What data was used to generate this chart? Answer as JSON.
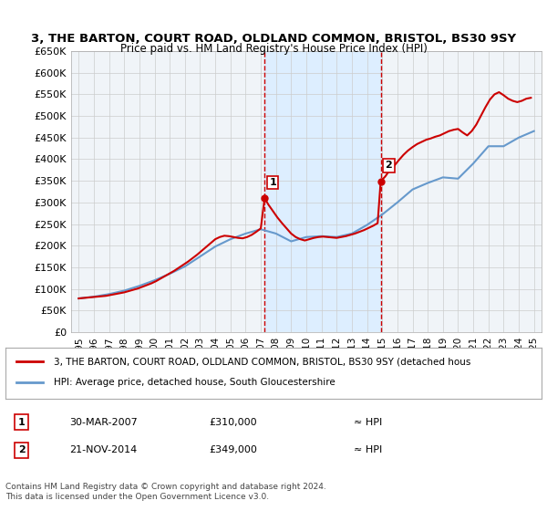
{
  "title": "3, THE BARTON, COURT ROAD, OLDLAND COMMON, BRISTOL, BS30 9SY",
  "subtitle": "Price paid vs. HM Land Registry's House Price Index (HPI)",
  "legend_line1": "3, THE BARTON, COURT ROAD, OLDLAND COMMON, BRISTOL, BS30 9SY (detached hous",
  "legend_line2": "HPI: Average price, detached house, South Gloucestershire",
  "footer": "Contains HM Land Registry data © Crown copyright and database right 2024.\nThis data is licensed under the Open Government Licence v3.0.",
  "sale1_label": "1",
  "sale1_date": "30-MAR-2007",
  "sale1_price": "£310,000",
  "sale1_note": "≈ HPI",
  "sale2_label": "2",
  "sale2_date": "21-NOV-2014",
  "sale2_price": "£349,000",
  "sale2_note": "≈ HPI",
  "sale1_year": 2007.25,
  "sale2_year": 2014.9,
  "sale1_value": 310000,
  "sale2_value": 349000,
  "ylim": [
    0,
    650000
  ],
  "xlim": [
    1994.5,
    2025.5
  ],
  "yticks": [
    0,
    50000,
    100000,
    150000,
    200000,
    250000,
    300000,
    350000,
    400000,
    450000,
    500000,
    550000,
    600000,
    650000
  ],
  "ytick_labels": [
    "£0",
    "£50K",
    "£100K",
    "£150K",
    "£200K",
    "£250K",
    "£300K",
    "£350K",
    "£400K",
    "£450K",
    "£500K",
    "£550K",
    "£600K",
    "£650K"
  ],
  "xticks": [
    1995,
    1996,
    1997,
    1998,
    1999,
    2000,
    2001,
    2002,
    2003,
    2004,
    2005,
    2006,
    2007,
    2008,
    2009,
    2010,
    2011,
    2012,
    2013,
    2014,
    2015,
    2016,
    2017,
    2018,
    2019,
    2020,
    2021,
    2022,
    2023,
    2024,
    2025
  ],
  "hpi_years": [
    1995,
    1996,
    1997,
    1998,
    1999,
    2000,
    2001,
    2002,
    2003,
    2004,
    2005,
    2006,
    2007,
    2008,
    2009,
    2010,
    2011,
    2012,
    2013,
    2014,
    2015,
    2016,
    2017,
    2018,
    2019,
    2020,
    2021,
    2022,
    2023,
    2024,
    2025
  ],
  "hpi_values": [
    78000,
    82000,
    88000,
    96000,
    107000,
    120000,
    135000,
    152000,
    175000,
    198000,
    215000,
    228000,
    238000,
    228000,
    210000,
    220000,
    222000,
    220000,
    228000,
    248000,
    272000,
    300000,
    330000,
    345000,
    358000,
    355000,
    390000,
    430000,
    430000,
    450000,
    465000
  ],
  "price_years": [
    1995.0,
    1995.3,
    1995.6,
    1995.9,
    1996.2,
    1996.5,
    1996.8,
    1997.1,
    1997.4,
    1997.7,
    1998.0,
    1998.3,
    1998.6,
    1998.9,
    1999.2,
    1999.5,
    1999.8,
    2000.1,
    2000.4,
    2000.7,
    2001.0,
    2001.3,
    2001.6,
    2001.9,
    2002.2,
    2002.5,
    2002.8,
    2003.1,
    2003.4,
    2003.7,
    2004.0,
    2004.3,
    2004.6,
    2004.9,
    2005.2,
    2005.5,
    2005.8,
    2006.1,
    2006.4,
    2006.7,
    2007.0,
    2007.25,
    2007.5,
    2007.8,
    2008.1,
    2008.4,
    2008.7,
    2009.0,
    2009.3,
    2009.6,
    2009.9,
    2010.2,
    2010.5,
    2010.8,
    2011.1,
    2011.4,
    2011.7,
    2012.0,
    2012.3,
    2012.6,
    2012.9,
    2013.2,
    2013.5,
    2013.8,
    2014.1,
    2014.4,
    2014.7,
    2014.9,
    2015.2,
    2015.5,
    2015.8,
    2016.1,
    2016.4,
    2016.7,
    2017.0,
    2017.3,
    2017.6,
    2017.9,
    2018.2,
    2018.5,
    2018.8,
    2019.1,
    2019.4,
    2019.7,
    2020.0,
    2020.3,
    2020.6,
    2020.9,
    2021.2,
    2021.5,
    2021.8,
    2022.1,
    2022.4,
    2022.7,
    2023.0,
    2023.3,
    2023.6,
    2023.9,
    2024.2,
    2024.5,
    2024.8
  ],
  "price_values": [
    78000,
    79000,
    80000,
    81000,
    82000,
    83000,
    84000,
    86000,
    88000,
    90000,
    92000,
    95000,
    98000,
    101000,
    105000,
    109000,
    113000,
    118000,
    124000,
    130000,
    136000,
    142000,
    149000,
    156000,
    163000,
    171000,
    179000,
    188000,
    197000,
    206000,
    215000,
    220000,
    223000,
    222000,
    220000,
    218000,
    217000,
    220000,
    225000,
    232000,
    240000,
    310000,
    295000,
    280000,
    265000,
    252000,
    240000,
    228000,
    220000,
    215000,
    212000,
    215000,
    218000,
    220000,
    221000,
    220000,
    219000,
    218000,
    220000,
    222000,
    225000,
    228000,
    232000,
    236000,
    241000,
    246000,
    252000,
    349000,
    360000,
    375000,
    385000,
    398000,
    410000,
    420000,
    428000,
    435000,
    440000,
    445000,
    448000,
    452000,
    455000,
    460000,
    465000,
    468000,
    470000,
    462000,
    455000,
    465000,
    480000,
    500000,
    520000,
    538000,
    550000,
    555000,
    548000,
    540000,
    535000,
    532000,
    535000,
    540000,
    542000
  ],
  "red_color": "#cc0000",
  "blue_color": "#6699cc",
  "shade_color": "#ddeeff",
  "grid_color": "#cccccc",
  "bg_color": "#ffffff",
  "plot_bg_color": "#f0f4f8"
}
